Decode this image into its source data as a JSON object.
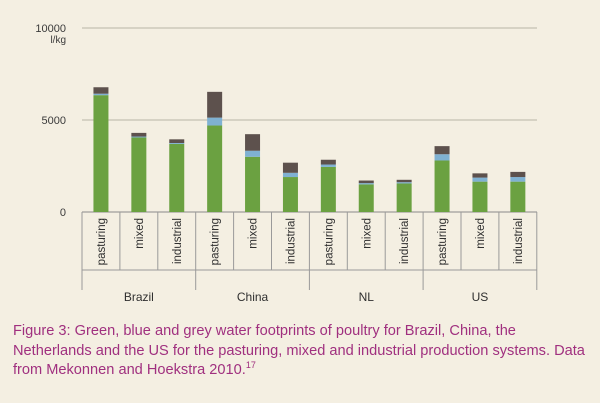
{
  "chart_data": {
    "type": "bar",
    "stacked": true,
    "y_tick_labels": [
      "10000",
      "5000",
      "0"
    ],
    "y_ticks": [
      10000,
      5000,
      0
    ],
    "ylim": [
      0,
      10000
    ],
    "y_unit": "l/kg",
    "grid": "horizontal",
    "groups": [
      "Brazil",
      "China",
      "NL",
      "US"
    ],
    "subcategories": [
      "pasturing",
      "mixed",
      "industrial"
    ],
    "categories": [
      "Brazil pasturing",
      "Brazil mixed",
      "Brazil industrial",
      "China pasturing",
      "China mixed",
      "China industrial",
      "NL pasturing",
      "NL mixed",
      "NL industrial",
      "US pasturing",
      "US mixed",
      "US industrial"
    ],
    "series": [
      {
        "values": [
          6350,
          4050,
          3700,
          4700,
          3000,
          1900,
          2450,
          1500,
          1550,
          2800,
          1650,
          1650
        ]
      },
      {
        "values": [
          80,
          50,
          50,
          430,
          330,
          230,
          130,
          70,
          70,
          340,
          220,
          250
        ]
      },
      {
        "values": [
          350,
          200,
          200,
          1400,
          900,
          550,
          260,
          140,
          130,
          440,
          230,
          280
        ]
      }
    ],
    "colors": [
      "#6ba141",
      "#7fb1d2",
      "#5d514d"
    ]
  },
  "caption": {
    "text": "Figure 3: Green, blue and grey water footprints of poultry for Brazil, China, the Netherlands and the US for the pasturing, mixed and industrial production systems. Data from Mekonnen and Hoekstra 2010.",
    "ref": "17"
  }
}
